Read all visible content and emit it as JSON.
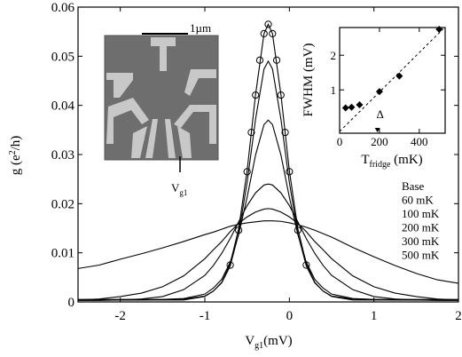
{
  "chart_data": [
    {
      "type": "line",
      "xlabel": {
        "text": "V",
        "sub": "g1",
        "rest": "(mV)"
      },
      "ylabel": {
        "text": "g (e",
        "sup": "2",
        "rest": "/h)"
      },
      "xlim": [
        -2.5,
        2
      ],
      "xticks": [
        -2,
        -1,
        0,
        1,
        2
      ],
      "ylim": [
        0,
        0.06
      ],
      "yticks": [
        0,
        0.01,
        0.02,
        0.03,
        0.04,
        0.05,
        0.06
      ],
      "x": [
        -2.5,
        -2.25,
        -2,
        -1.75,
        -1.5,
        -1.25,
        -1,
        -0.9,
        -0.8,
        -0.7,
        -0.6,
        -0.5,
        -0.4,
        -0.3,
        -0.25,
        -0.2,
        -0.1,
        0,
        0.1,
        0.2,
        0.3,
        0.4,
        0.5,
        0.75,
        1,
        1.25,
        1.5,
        1.75,
        2
      ],
      "series": [
        {
          "name": "Base",
          "color": "#000000",
          "values": [
            0.0005,
            0.0005,
            0.0005,
            0.0005,
            0.0005,
            0.0006,
            0.0012,
            0.0022,
            0.004,
            0.0078,
            0.0149,
            0.0267,
            0.0422,
            0.0546,
            0.0565,
            0.0546,
            0.0422,
            0.0267,
            0.0149,
            0.0078,
            0.004,
            0.0022,
            0.0012,
            0.0006,
            0.0005,
            0.0005,
            0.0005,
            0.0005,
            0.0005
          ]
        },
        {
          "name": "60 mK",
          "color": "#000000",
          "values": [
            0.0004,
            0.0004,
            0.0004,
            0.0004,
            0.0004,
            0.0004,
            0.0011,
            0.0022,
            0.0039,
            0.0073,
            0.0139,
            0.0243,
            0.0372,
            0.0474,
            0.049,
            0.0474,
            0.0372,
            0.0243,
            0.0139,
            0.0073,
            0.0039,
            0.0022,
            0.0011,
            0.0004,
            0.0004,
            0.0004,
            0.0004,
            0.0004,
            0.0004
          ]
        },
        {
          "name": "100 mK",
          "color": "#000000",
          "values": [
            0.0004,
            0.0004,
            0.0004,
            0.0004,
            0.0005,
            0.0007,
            0.0016,
            0.0028,
            0.0046,
            0.0081,
            0.0137,
            0.0213,
            0.0299,
            0.0361,
            0.037,
            0.0361,
            0.0299,
            0.0213,
            0.0137,
            0.0081,
            0.0046,
            0.0028,
            0.0016,
            0.0007,
            0.0005,
            0.0004,
            0.0004,
            0.0004,
            0.0004
          ]
        },
        {
          "name": "200 mK",
          "color": "#000000",
          "values": [
            0.0003,
            0.0003,
            0.0004,
            0.0006,
            0.0011,
            0.0025,
            0.0054,
            0.0074,
            0.0099,
            0.0129,
            0.0163,
            0.0196,
            0.0222,
            0.0238,
            0.024,
            0.0238,
            0.0222,
            0.0196,
            0.0163,
            0.0129,
            0.0099,
            0.0074,
            0.0054,
            0.0025,
            0.0011,
            0.0006,
            0.0004,
            0.0003,
            0.0003
          ]
        },
        {
          "name": "300 mK",
          "color": "#000000",
          "values": [
            0.0004,
            0.0006,
            0.0011,
            0.0018,
            0.0031,
            0.0053,
            0.0088,
            0.0106,
            0.0123,
            0.0143,
            0.016,
            0.0173,
            0.0183,
            0.0189,
            0.019,
            0.0189,
            0.0183,
            0.0173,
            0.016,
            0.0143,
            0.0123,
            0.0106,
            0.0088,
            0.0053,
            0.0031,
            0.0018,
            0.0011,
            0.0006,
            0.0004
          ]
        },
        {
          "name": "500 mK",
          "color": "#000000",
          "values": [
            0.0068,
            0.0075,
            0.0087,
            0.0098,
            0.011,
            0.0123,
            0.0137,
            0.0142,
            0.0148,
            0.0154,
            0.0158,
            0.0161,
            0.0163,
            0.0165,
            0.0165,
            0.0165,
            0.0164,
            0.0161,
            0.0157,
            0.0152,
            0.0146,
            0.0139,
            0.0132,
            0.0111,
            0.0092,
            0.0074,
            0.0058,
            0.0045,
            0.0038
          ]
        }
      ],
      "fit": {
        "x": [
          -0.7,
          -0.6,
          -0.5,
          -0.45,
          -0.4,
          -0.35,
          -0.3,
          -0.25,
          -0.2,
          -0.15,
          -0.1,
          -0.05,
          0,
          0.1,
          0.2
        ],
        "values": [
          0.0075,
          0.0146,
          0.0265,
          0.0345,
          0.0421,
          0.0492,
          0.0546,
          0.0565,
          0.0546,
          0.0492,
          0.0421,
          0.0345,
          0.0265,
          0.0146,
          0.0075
        ]
      },
      "image_labels": {
        "scale": "1µm",
        "gate": {
          "text": "V",
          "sub": "g1"
        }
      }
    },
    {
      "type": "scatter",
      "xlabel": {
        "text": "T",
        "sub": "fridge",
        "rest": " (mK)"
      },
      "ylabel": "FWHM (mV)",
      "xlim": [
        0,
        530
      ],
      "xticks": [
        0,
        200,
        400
      ],
      "ylim": [
        -0.25,
        2.8
      ],
      "yticks": [
        1,
        2
      ],
      "x": [
        30,
        60,
        100,
        200,
        300,
        500
      ],
      "values": [
        0.48,
        0.5,
        0.57,
        0.95,
        1.4,
        2.75
      ],
      "fit": {
        "x": [
          0,
          520
        ],
        "values": [
          -0.2,
          2.76
        ]
      },
      "annotation": {
        "text": "Δ",
        "x": 190
      }
    }
  ]
}
